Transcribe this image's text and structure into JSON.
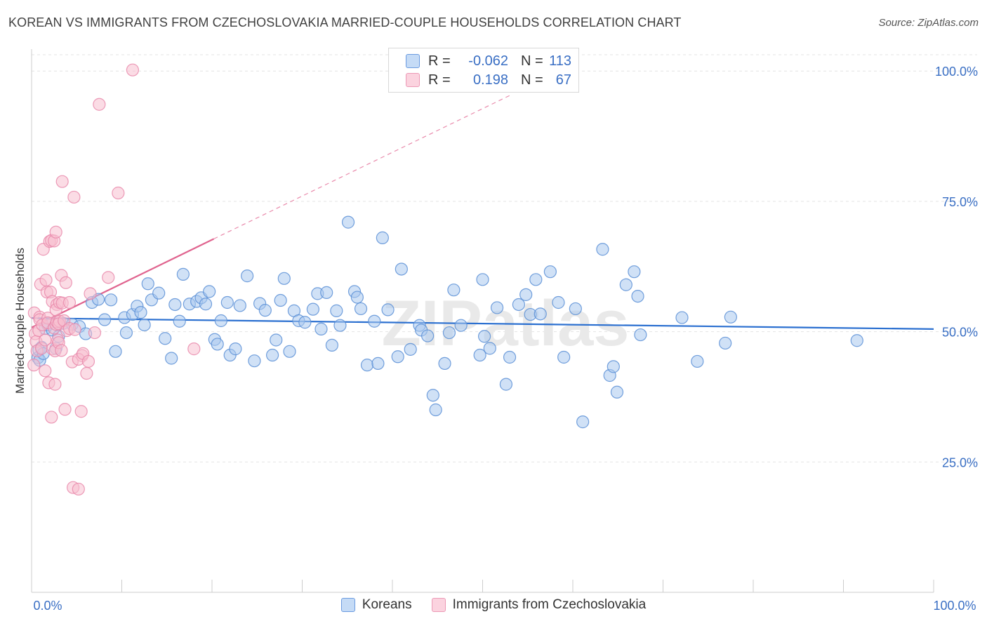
{
  "title": "KOREAN VS IMMIGRANTS FROM CZECHOSLOVAKIA MARRIED-COUPLE HOUSEHOLDS CORRELATION CHART",
  "source": "Source: ZipAtlas.com",
  "watermark": "ZIPatlas",
  "colors": {
    "blue_fill": "#aac8ee",
    "blue_stroke": "#5b8fd6",
    "blue_line": "#2a6fd0",
    "pink_fill": "#f7bfd0",
    "pink_stroke": "#e98aab",
    "pink_line": "#e0648f",
    "axis_text": "#3a6fc4",
    "grid": "#e3e3e3"
  },
  "legend": {
    "rows": [
      {
        "r_label": "R =",
        "r_value": "-0.062",
        "n_label": "N =",
        "n_value": "113"
      },
      {
        "r_label": "R =",
        "r_value": "0.198",
        "n_label": "N =",
        "n_value": "67"
      }
    ]
  },
  "bottom_legend": [
    "Koreans",
    "Immigrants from Czechoslovakia"
  ],
  "chart_data": {
    "type": "scatter",
    "xlabel": "",
    "ylabel": "Married-couple Households",
    "xlim": [
      0,
      100
    ],
    "ylim": [
      0,
      104.2
    ],
    "x_tick_labels": [
      "0.0%",
      "100.0%"
    ],
    "y_ticks": [
      25,
      50,
      75,
      100
    ],
    "y_tick_labels": [
      "25.0%",
      "50.0%",
      "75.0%",
      "100.0%"
    ],
    "grid": "horizontal dashed",
    "series": [
      {
        "name": "Koreans",
        "trend": {
          "x": [
            0,
            100
          ],
          "y": [
            52.6,
            50.5
          ]
        },
        "points": [
          [
            0.7,
            45
          ],
          [
            0.8,
            46.5
          ],
          [
            0.9,
            44.5
          ],
          [
            1.1,
            47
          ],
          [
            1.3,
            45.8
          ],
          [
            1.5,
            50.6
          ],
          [
            1.8,
            51.3
          ],
          [
            2.3,
            50.3
          ],
          [
            2.7,
            46.8
          ],
          [
            3.0,
            49.1
          ],
          [
            3.5,
            51.6
          ],
          [
            4.5,
            51.4
          ],
          [
            5.3,
            51
          ],
          [
            6.0,
            49.6
          ],
          [
            6.7,
            55.6
          ],
          [
            7.4,
            56.2
          ],
          [
            8.1,
            52.3
          ],
          [
            8.8,
            56.1
          ],
          [
            9.3,
            46.2
          ],
          [
            10.3,
            52.7
          ],
          [
            10.5,
            49.8
          ],
          [
            11.2,
            53.3
          ],
          [
            11.7,
            54.9
          ],
          [
            12.1,
            53.7
          ],
          [
            12.5,
            51.3
          ],
          [
            12.9,
            59.2
          ],
          [
            13.3,
            56.1
          ],
          [
            14.1,
            57.4
          ],
          [
            14.8,
            48.7
          ],
          [
            15.5,
            44.9
          ],
          [
            15.9,
            55.2
          ],
          [
            16.4,
            52
          ],
          [
            16.8,
            61
          ],
          [
            17.5,
            55.3
          ],
          [
            18.3,
            55.8
          ],
          [
            18.8,
            56.5
          ],
          [
            19.3,
            55.3
          ],
          [
            19.7,
            57.7
          ],
          [
            20.3,
            48.5
          ],
          [
            20.6,
            47.6
          ],
          [
            21.0,
            52.1
          ],
          [
            21.7,
            55.6
          ],
          [
            22.0,
            45.5
          ],
          [
            22.6,
            46.7
          ],
          [
            23.1,
            55
          ],
          [
            23.9,
            60.7
          ],
          [
            24.7,
            44.4
          ],
          [
            25.3,
            55.4
          ],
          [
            25.9,
            54.1
          ],
          [
            26.7,
            45.5
          ],
          [
            27.1,
            48.4
          ],
          [
            27.6,
            56
          ],
          [
            28.0,
            60.2
          ],
          [
            28.6,
            46.2
          ],
          [
            29.1,
            54
          ],
          [
            29.6,
            52.1
          ],
          [
            30.3,
            51.8
          ],
          [
            31.2,
            54.3
          ],
          [
            31.7,
            57.3
          ],
          [
            32.1,
            50.5
          ],
          [
            32.7,
            57.5
          ],
          [
            33.3,
            47.4
          ],
          [
            33.8,
            54
          ],
          [
            34.2,
            51.2
          ],
          [
            35.1,
            71
          ],
          [
            35.8,
            57.7
          ],
          [
            36.1,
            56.6
          ],
          [
            36.5,
            54.4
          ],
          [
            37.2,
            43.6
          ],
          [
            38.0,
            52
          ],
          [
            38.4,
            43.9
          ],
          [
            38.9,
            68
          ],
          [
            39.5,
            54.2
          ],
          [
            40.6,
            45.2
          ],
          [
            41.0,
            62
          ],
          [
            42.0,
            46.6
          ],
          [
            43.0,
            51.2
          ],
          [
            43.2,
            50.3
          ],
          [
            43.9,
            49.2
          ],
          [
            44.5,
            37.8
          ],
          [
            44.8,
            35
          ],
          [
            45.8,
            43.9
          ],
          [
            46.3,
            49.8
          ],
          [
            46.8,
            58
          ],
          [
            47.6,
            51.2
          ],
          [
            49.7,
            45.5
          ],
          [
            50.0,
            60
          ],
          [
            50.2,
            49.1
          ],
          [
            50.8,
            46.8
          ],
          [
            51.6,
            54.6
          ],
          [
            52.6,
            39.9
          ],
          [
            53.0,
            45.1
          ],
          [
            54.0,
            55.2
          ],
          [
            54.8,
            57.1
          ],
          [
            55.3,
            53.3
          ],
          [
            55.9,
            60
          ],
          [
            56.4,
            53.4
          ],
          [
            57.5,
            61.5
          ],
          [
            58.4,
            55.6
          ],
          [
            59.0,
            45.1
          ],
          [
            60.3,
            54.4
          ],
          [
            61.1,
            32.7
          ],
          [
            63.3,
            65.8
          ],
          [
            64.1,
            41.6
          ],
          [
            64.5,
            43.3
          ],
          [
            64.9,
            38.4
          ],
          [
            65.9,
            59
          ],
          [
            66.8,
            61.5
          ],
          [
            67.2,
            56.8
          ],
          [
            67.5,
            49.4
          ],
          [
            72.1,
            52.7
          ],
          [
            73.8,
            44.3
          ],
          [
            76.9,
            47.8
          ],
          [
            77.5,
            52.8
          ],
          [
            91.5,
            48.3
          ]
        ]
      },
      {
        "name": "Immigrants from Czechoslovakia",
        "trend": {
          "x": [
            0,
            20.2
          ],
          "y": [
            50.8,
            67.8
          ]
        },
        "trend_dashed": {
          "x": [
            20.2,
            53
          ],
          "y": [
            67.8,
            95.3
          ]
        },
        "points": [
          [
            0.25,
            43.6
          ],
          [
            0.3,
            53.6
          ],
          [
            0.4,
            49.6
          ],
          [
            0.5,
            48.1
          ],
          [
            0.6,
            46.3
          ],
          [
            0.8,
            50.2
          ],
          [
            0.9,
            52.8
          ],
          [
            0.9,
            52.3
          ],
          [
            1.0,
            59.1
          ],
          [
            1.1,
            46.8
          ],
          [
            1.2,
            51.3
          ],
          [
            1.3,
            65.8
          ],
          [
            1.5,
            42.5
          ],
          [
            1.5,
            48.4
          ],
          [
            1.6,
            59.9
          ],
          [
            1.7,
            57.6
          ],
          [
            1.8,
            52.6
          ],
          [
            1.8,
            51.7
          ],
          [
            1.9,
            40.2
          ],
          [
            2.0,
            67.3
          ],
          [
            2.1,
            57.6
          ],
          [
            2.2,
            33.6
          ],
          [
            2.2,
            67.5
          ],
          [
            2.3,
            46.7
          ],
          [
            2.3,
            55.8
          ],
          [
            2.5,
            67.4
          ],
          [
            2.5,
            50.7
          ],
          [
            2.6,
            39.9
          ],
          [
            2.6,
            46.3
          ],
          [
            2.7,
            51.4
          ],
          [
            2.7,
            69.1
          ],
          [
            2.8,
            55.2
          ],
          [
            2.8,
            51.9
          ],
          [
            2.9,
            48.4
          ],
          [
            3.0,
            47.9
          ],
          [
            3.1,
            52
          ],
          [
            3.3,
            60.8
          ],
          [
            3.3,
            46.4
          ],
          [
            2.7,
            54.2
          ],
          [
            3.4,
            78.8
          ],
          [
            3.7,
            35.1
          ],
          [
            3.0,
            51.5
          ],
          [
            3.1,
            55.6
          ],
          [
            3.4,
            55.5
          ],
          [
            3.6,
            52.1
          ],
          [
            3.8,
            59.4
          ],
          [
            3.9,
            50.2
          ],
          [
            4.2,
            55.6
          ],
          [
            4.2,
            50.6
          ],
          [
            4.5,
            44.2
          ],
          [
            4.6,
            20.1
          ],
          [
            4.7,
            75.8
          ],
          [
            5.2,
            19.8
          ],
          [
            5.6,
            45.4
          ],
          [
            5.5,
            34.7
          ],
          [
            4.8,
            50.4
          ],
          [
            5.2,
            44.7
          ],
          [
            5.7,
            45.8
          ],
          [
            6.1,
            42
          ],
          [
            6.3,
            44.3
          ],
          [
            6.5,
            57.3
          ],
          [
            7.0,
            49.8
          ],
          [
            7.5,
            93.6
          ],
          [
            8.5,
            60.4
          ],
          [
            9.6,
            76.6
          ],
          [
            11.2,
            100.2
          ],
          [
            18.0,
            46.7
          ]
        ]
      }
    ]
  }
}
